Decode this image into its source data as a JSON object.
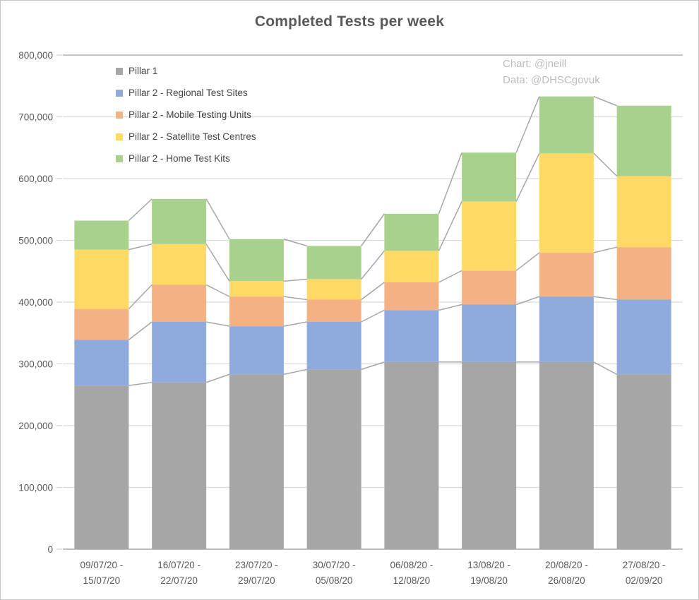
{
  "title": "Completed Tests per week",
  "credits": {
    "chart": "Chart: @jneill",
    "data": "Data: @DHSCgovuk"
  },
  "colors": {
    "gridline": "#d9d9d9",
    "top_gridline": "#b3b3b3",
    "axis_line": "#bfbfbf",
    "series_line": "#a6a6a6",
    "axis_text": "#595959",
    "title_text": "#595959",
    "legend_text": "#454545",
    "credit_text": "#bdbdbd",
    "border": "#c6c6c6"
  },
  "chart_data": {
    "type": "bar",
    "stacked": true,
    "title": "Completed Tests per week",
    "xlabel": "",
    "ylabel": "",
    "ylim": [
      0,
      800000
    ],
    "ytick_step": 100000,
    "ytick_labels": [
      "0",
      "100,000",
      "200,000",
      "300,000",
      "400,000",
      "500,000",
      "600,000",
      "700,000",
      "800,000"
    ],
    "grid": true,
    "series_lines": true,
    "legend_position": "inside-top-left",
    "categories": [
      "09/07/20 - 15/07/20",
      "16/07/20 - 22/07/20",
      "23/07/20 - 29/07/20",
      "30/07/20 - 05/08/20",
      "06/08/20 - 12/08/20",
      "13/08/20 - 19/08/20",
      "20/08/20 - 26/08/20",
      "27/08/20 - 02/09/20"
    ],
    "series": [
      {
        "name": "Pillar 1",
        "color": "#a6a6a6",
        "values": [
          265000,
          270000,
          283000,
          291000,
          303000,
          303000,
          303000,
          283000
        ]
      },
      {
        "name": "Pillar 2 - Regional Test Sites",
        "color": "#8faadc",
        "values": [
          74000,
          98000,
          78000,
          77000,
          84000,
          93000,
          106000,
          121000
        ]
      },
      {
        "name": "Pillar 2 - Mobile Testing Units",
        "color": "#f4b183",
        "values": [
          50000,
          60000,
          48000,
          36000,
          45000,
          55000,
          71000,
          85000
        ]
      },
      {
        "name": "Pillar 2 - Satellite Test Centres",
        "color": "#ffd966",
        "values": [
          96000,
          66000,
          25000,
          33000,
          51000,
          112000,
          161000,
          115000
        ]
      },
      {
        "name": "Pillar 2 - Home Test Kits",
        "color": "#a9d18e",
        "values": [
          47000,
          73000,
          68000,
          54000,
          60000,
          79000,
          92000,
          114000
        ]
      }
    ]
  }
}
